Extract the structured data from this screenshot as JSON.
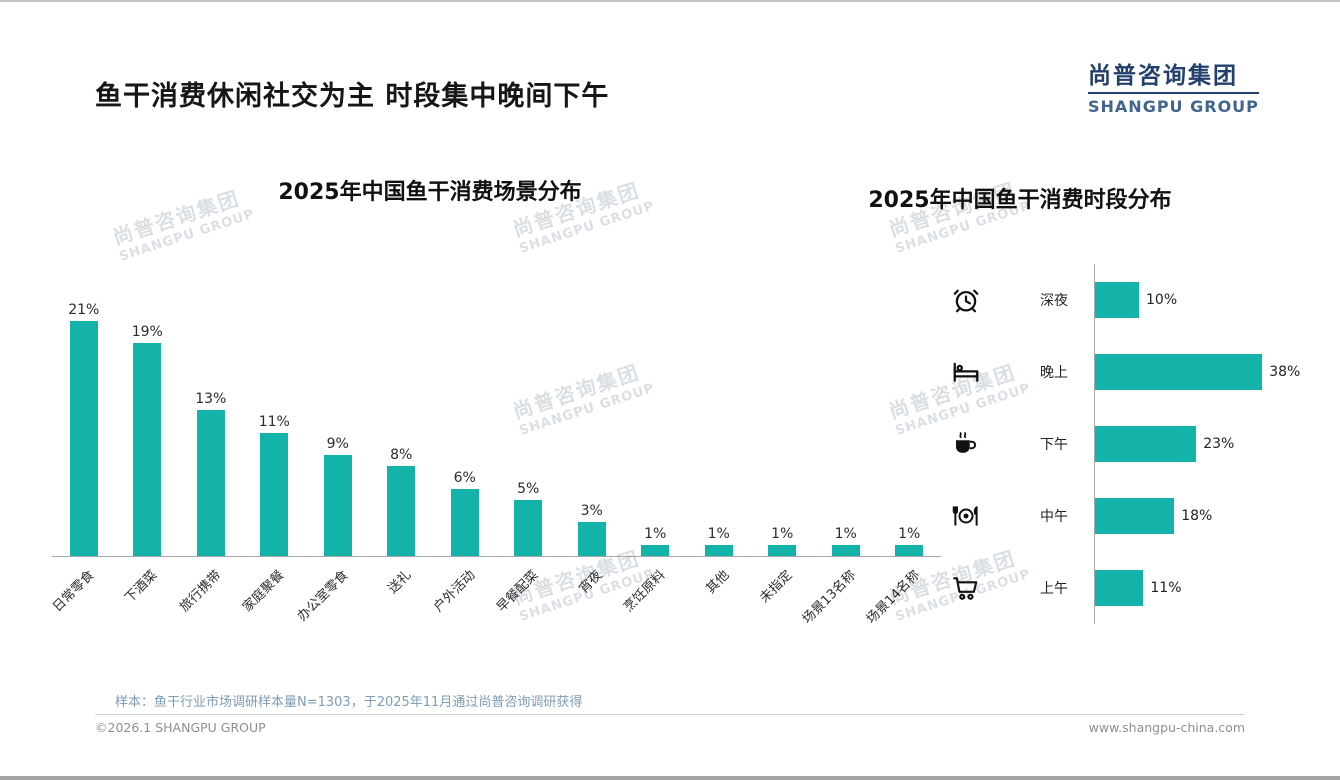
{
  "page": {
    "title": "鱼干消费休闲社交为主 时段集中晚间下午",
    "logo": {
      "cn": "尚普咨询集团",
      "en": "SHANGPU GROUP"
    },
    "watermark": {
      "cn": "尚普咨询集团",
      "en": "SHANGPU GROUP"
    },
    "footer": {
      "note": "样本：鱼干行业市场调研样本量N=1303，于2025年11月通过尚普咨询调研获得",
      "copyright": "©2026.1 SHANGPU GROUP",
      "website": "www.shangpu-china.com"
    },
    "colors": {
      "accent": "#14b3aa",
      "logo_cn": "#22406b",
      "logo_en": "#41658f"
    }
  },
  "chart_data": [
    {
      "type": "bar",
      "title": "2025年中国鱼干消费场景分布",
      "categories": [
        "日常零食",
        "下酒菜",
        "旅行携带",
        "家庭聚餐",
        "办公室零食",
        "送礼",
        "户外活动",
        "早餐配菜",
        "宵夜",
        "烹饪原料",
        "其他",
        "未指定",
        "场景13名称",
        "场景14名称"
      ],
      "values": [
        21,
        19,
        13,
        11,
        9,
        8,
        6,
        5,
        3,
        1,
        1,
        1,
        1,
        1
      ],
      "unit": "%",
      "bar_color": "#14b3aa",
      "ylim": [
        0,
        22
      ],
      "grid": false,
      "legend": "none"
    },
    {
      "type": "bar",
      "orientation": "horizontal",
      "title": "2025年中国鱼干消费时段分布",
      "categories": [
        "深夜",
        "晚上",
        "下午",
        "中午",
        "上午"
      ],
      "values": [
        10,
        38,
        23,
        18,
        11
      ],
      "icons": [
        "alarm-clock",
        "bed",
        "coffee",
        "dining",
        "cart"
      ],
      "unit": "%",
      "bar_color": "#14b3aa",
      "xlim": [
        0,
        40
      ],
      "grid": false,
      "legend": "none"
    }
  ]
}
